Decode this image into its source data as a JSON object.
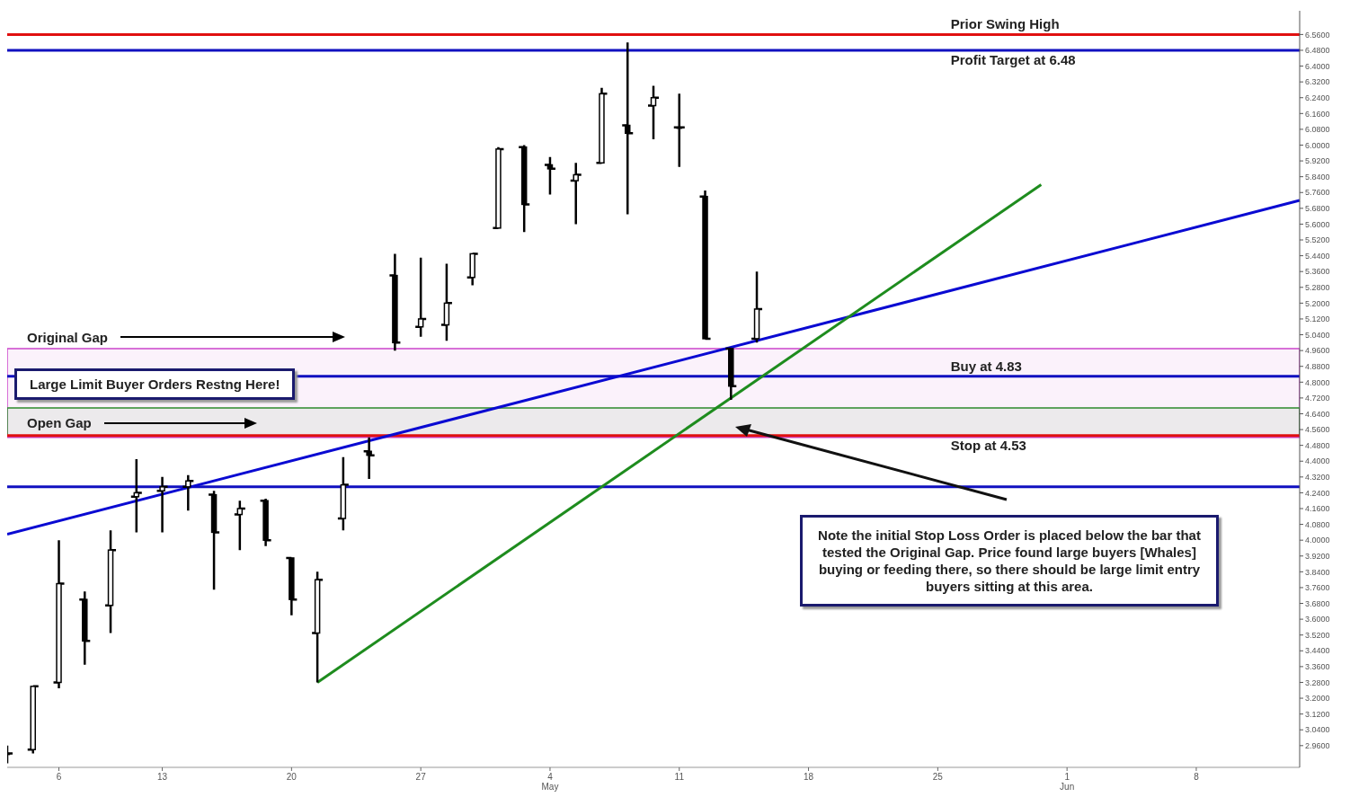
{
  "chart_data": {
    "type": "candlestick",
    "categories": [
      null,
      null,
      "6",
      null,
      null,
      null,
      "13",
      null,
      null,
      null,
      null,
      "20",
      null,
      null,
      null,
      null,
      "27",
      null,
      null,
      null,
      null,
      "4\nMay",
      null,
      null,
      null,
      null,
      "11",
      null,
      null,
      null,
      null,
      "18",
      null,
      null,
      null,
      null,
      "25",
      null,
      null,
      null,
      null,
      "1\nJun",
      null,
      null,
      null,
      null,
      "8",
      null,
      null,
      null,
      null
    ],
    "color": "#000000",
    "ohlc": [
      [
        2.92,
        2.96,
        2.87,
        2.92
      ],
      [
        2.94,
        3.26,
        2.92,
        3.26
      ],
      [
        3.28,
        4.0,
        3.25,
        3.78
      ],
      [
        3.7,
        3.74,
        3.37,
        3.49
      ],
      [
        3.67,
        4.05,
        3.53,
        3.95
      ],
      [
        4.22,
        4.41,
        4.04,
        4.24
      ],
      [
        4.25,
        4.32,
        4.04,
        4.27
      ],
      [
        4.27,
        4.33,
        4.15,
        4.3
      ],
      [
        4.23,
        4.25,
        3.75,
        4.04
      ],
      [
        4.13,
        4.2,
        3.95,
        4.16
      ],
      [
        4.2,
        4.21,
        3.97,
        4.0
      ],
      [
        3.91,
        3.91,
        3.62,
        3.7
      ],
      [
        3.53,
        3.84,
        3.28,
        3.8
      ],
      [
        4.11,
        4.42,
        4.05,
        4.28
      ],
      [
        4.45,
        4.52,
        4.31,
        4.43
      ],
      [
        5.34,
        5.45,
        4.96,
        5.0
      ],
      [
        5.08,
        5.43,
        5.03,
        5.12
      ],
      [
        5.09,
        5.4,
        5.01,
        5.2
      ],
      [
        5.33,
        5.45,
        5.29,
        5.45
      ],
      [
        5.58,
        5.99,
        5.58,
        5.98
      ],
      [
        5.99,
        6.0,
        5.56,
        5.7
      ],
      [
        5.9,
        5.94,
        5.75,
        5.88
      ],
      [
        5.82,
        5.91,
        5.6,
        5.85
      ],
      [
        5.91,
        6.29,
        5.91,
        6.26
      ],
      [
        6.1,
        6.52,
        5.65,
        6.06
      ],
      [
        6.2,
        6.3,
        6.03,
        6.24
      ],
      [
        6.09,
        6.26,
        5.89,
        6.09
      ],
      [
        5.74,
        5.77,
        5.02,
        5.02
      ],
      [
        4.97,
        4.97,
        4.71,
        4.78
      ],
      [
        5.02,
        5.36,
        5.0,
        5.17
      ],
      null,
      null,
      null,
      null,
      null,
      null,
      null,
      null,
      null,
      null,
      null,
      null,
      null,
      null,
      null,
      null,
      null,
      null,
      null,
      null,
      null
    ],
    "series": [
      {
        "type": "line",
        "color": "#0a0ad2",
        "values": [
          4.03,
          null,
          null,
          null,
          null,
          null,
          null,
          null,
          null,
          null,
          null,
          null,
          null,
          null,
          null,
          null,
          null,
          null,
          null,
          null,
          null,
          null,
          null,
          null,
          null,
          null,
          null,
          null,
          null,
          null,
          null,
          null,
          null,
          null,
          null,
          null,
          null,
          null,
          null,
          null,
          null,
          null,
          null,
          null,
          null,
          null,
          null,
          null,
          null,
          null,
          5.72
        ]
      },
      {
        "type": "line",
        "color": "#1e8c1e",
        "values": [
          null,
          null,
          null,
          null,
          null,
          null,
          null,
          null,
          null,
          null,
          null,
          null,
          3.28,
          null,
          null,
          null,
          null,
          null,
          null,
          null,
          null,
          null,
          null,
          null,
          null,
          null,
          null,
          null,
          null,
          null,
          null,
          null,
          null,
          null,
          null,
          null,
          null,
          null,
          null,
          null,
          5.8,
          null,
          null,
          null,
          null,
          null,
          null,
          null,
          null,
          null,
          null
        ]
      }
    ],
    "ylim": [
      2.85,
      6.68
    ],
    "yticks": [
      {
        "value": 2.96,
        "label": "2.9600"
      },
      {
        "value": 3.04,
        "label": "3.0400"
      },
      {
        "value": 3.12,
        "label": "3.1200"
      },
      {
        "value": 3.2,
        "label": "3.2000"
      },
      {
        "value": 3.28,
        "label": "3.2800"
      },
      {
        "value": 3.36,
        "label": "3.3600"
      },
      {
        "value": 3.44,
        "label": "3.4400"
      },
      {
        "value": 3.52,
        "label": "3.5200"
      },
      {
        "value": 3.6,
        "label": "3.6000"
      },
      {
        "value": 3.68,
        "label": "3.6800"
      },
      {
        "value": 3.76,
        "label": "3.7600"
      },
      {
        "value": 3.84,
        "label": "3.8400"
      },
      {
        "value": 3.92,
        "label": "3.9200"
      },
      {
        "value": 4.0,
        "label": "4.0000"
      },
      {
        "value": 4.08,
        "label": "4.0800"
      },
      {
        "value": 4.16,
        "label": "4.1600"
      },
      {
        "value": 4.24,
        "label": "4.2400"
      },
      {
        "value": 4.32,
        "label": "4.3200"
      },
      {
        "value": 4.4,
        "label": "4.4000"
      },
      {
        "value": 4.48,
        "label": "4.4800"
      },
      {
        "value": 4.56,
        "label": "4.5600"
      },
      {
        "value": 4.64,
        "label": "4.6400"
      },
      {
        "value": 4.72,
        "label": "4.7200"
      },
      {
        "value": 4.8,
        "label": "4.8000"
      },
      {
        "value": 4.88,
        "label": "4.8800"
      },
      {
        "value": 4.96,
        "label": "4.9600"
      },
      {
        "value": 5.04,
        "label": "5.0400"
      },
      {
        "value": 5.12,
        "label": "5.1200"
      },
      {
        "value": 5.2,
        "label": "5.2000"
      },
      {
        "value": 5.28,
        "label": "5.2800"
      },
      {
        "value": 5.36,
        "label": "5.3600"
      },
      {
        "value": 5.44,
        "label": "5.4400"
      },
      {
        "value": 5.52,
        "label": "5.5200"
      },
      {
        "value": 5.6,
        "label": "5.6000"
      },
      {
        "value": 5.68,
        "label": "5.6800"
      },
      {
        "value": 5.76,
        "label": "5.7600"
      },
      {
        "value": 5.84,
        "label": "5.8400"
      },
      {
        "value": 5.92,
        "label": "5.9200"
      },
      {
        "value": 6.0,
        "label": "6.0000"
      },
      {
        "value": 6.08,
        "label": "6.0800"
      },
      {
        "value": 6.16,
        "label": "6.1600"
      },
      {
        "value": 6.24,
        "label": "6.2400"
      },
      {
        "value": 6.32,
        "label": "6.3200"
      },
      {
        "value": 6.4,
        "label": "6.4000"
      },
      {
        "value": 6.48,
        "label": "6.4800"
      },
      {
        "value": 6.56,
        "label": "6.5600"
      }
    ],
    "ref_lines": [
      {
        "axis": "y",
        "value": 6.56,
        "label": "Prior Swing High",
        "color": "#e01010"
      },
      {
        "axis": "y",
        "value": 6.48,
        "label": "Profit Target at 6.48",
        "color": "#1010c0"
      },
      {
        "axis": "y",
        "value": 4.83,
        "label": "Buy at 4.83",
        "color": "#1010c0"
      },
      {
        "axis": "y",
        "value": 4.53,
        "label": "Stop at 4.53",
        "color": "#e01010"
      },
      {
        "axis": "y",
        "value": 4.27,
        "color": "#1010c0"
      }
    ],
    "bands": [
      {
        "axis": "y",
        "from": 4.52,
        "to": 4.97,
        "label": "Original Gap",
        "color": "#cc44cc"
      },
      {
        "axis": "y",
        "from": 4.53,
        "to": 4.67,
        "label": "Open Gap",
        "color": "#2e8b2e"
      }
    ],
    "annotations": [
      "Large Limit Buyer Orders Restng Here!",
      "Note the initial Stop Loss Order is placed below the bar that tested the Original Gap. Price found large buyers [Whales] buying or feeding there, so there should be large limit entry buyers sitting at this area."
    ]
  }
}
